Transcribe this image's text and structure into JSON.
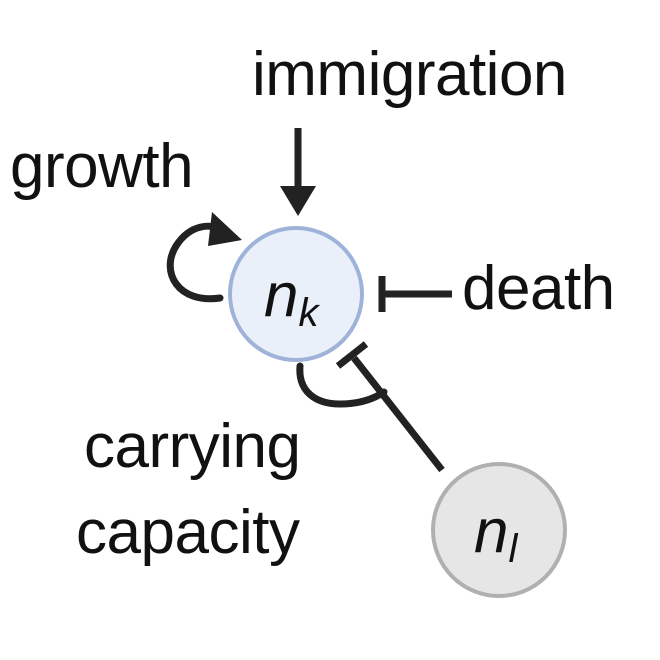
{
  "labels": {
    "immigration": "immigration",
    "growth": "growth",
    "death": "death",
    "carrying_line1": "carrying",
    "carrying_line2": "capacity"
  },
  "nodes": {
    "nk": {
      "base": "n",
      "subscript": "k"
    },
    "nl": {
      "base": "n",
      "subscript": "l"
    }
  },
  "colors": {
    "nk_fill": "#eaf0fa",
    "nk_stroke": "#9fb3d9",
    "nl_fill": "#e6e6e6",
    "nl_stroke": "#b0b0b0",
    "ink": "#222222"
  }
}
